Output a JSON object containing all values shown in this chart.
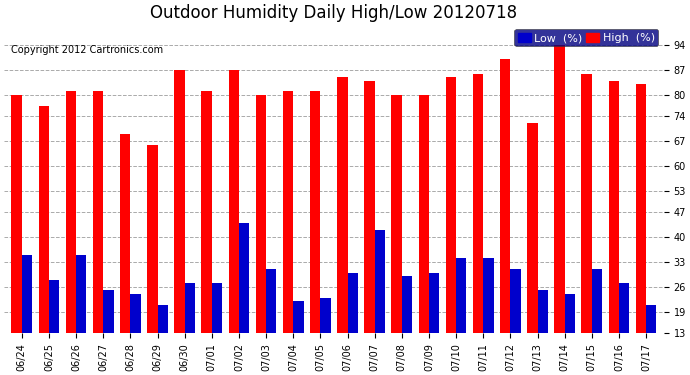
{
  "title": "Outdoor Humidity Daily High/Low 20120718",
  "copyright": "Copyright 2012 Cartronics.com",
  "categories": [
    "06/24",
    "06/25",
    "06/26",
    "06/27",
    "06/28",
    "06/29",
    "06/30",
    "07/01",
    "07/02",
    "07/03",
    "07/04",
    "07/05",
    "07/06",
    "07/07",
    "07/08",
    "07/09",
    "07/10",
    "07/11",
    "07/12",
    "07/13",
    "07/14",
    "07/15",
    "07/16",
    "07/17"
  ],
  "high": [
    80,
    77,
    81,
    81,
    69,
    66,
    87,
    81,
    87,
    80,
    81,
    81,
    85,
    84,
    80,
    80,
    85,
    86,
    90,
    72,
    94,
    86,
    84,
    83
  ],
  "low": [
    35,
    28,
    35,
    25,
    24,
    21,
    27,
    27,
    44,
    31,
    22,
    23,
    30,
    42,
    29,
    30,
    34,
    34,
    31,
    25,
    24,
    31,
    27,
    21
  ],
  "high_color": "#ff0000",
  "low_color": "#0000cc",
  "bg_color": "#ffffff",
  "plot_bg_color": "#ffffff",
  "grid_color": "#aaaaaa",
  "ymin": 13,
  "ymax": 100,
  "yticks": [
    13,
    19,
    26,
    33,
    40,
    47,
    53,
    60,
    67,
    74,
    80,
    87,
    94
  ],
  "bar_width": 0.38,
  "title_fontsize": 12,
  "tick_fontsize": 7,
  "copyright_fontsize": 7,
  "legend_fontsize": 8
}
